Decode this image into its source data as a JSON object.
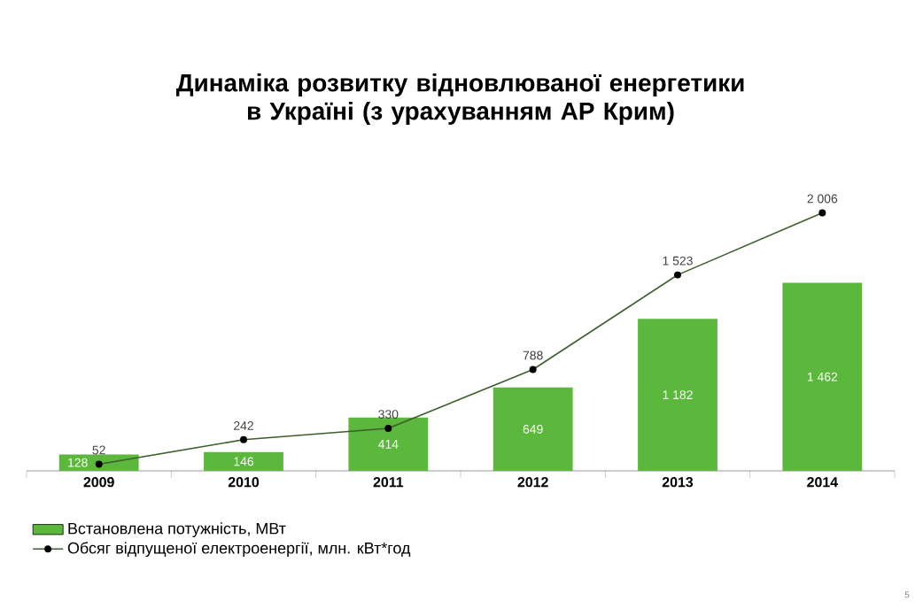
{
  "chart_data": {
    "type": "bar",
    "title": "Динаміка розвитку відновлюваної енергетики в Україні (з урахуванням АР Крим)",
    "categories": [
      "2009",
      "2010",
      "2011",
      "2012",
      "2013",
      "2014"
    ],
    "series": [
      {
        "name": "Встановлена потужність, МВт",
        "color": "#5cb83c",
        "values": [
          128,
          146,
          414,
          649,
          1182,
          1462
        ],
        "value_labels": [
          "128",
          "146",
          "414",
          "649",
          "1 182",
          "1 462"
        ]
      },
      {
        "name": "Обсяг відпущеної електроенергії, млн. кВт*год",
        "type": "line",
        "color": "#3d5f2c",
        "marker": "circle",
        "values": [
          52,
          242,
          330,
          788,
          1523,
          2006
        ],
        "value_labels": [
          "52",
          "242",
          "330",
          "788",
          "1 523",
          "2 006"
        ]
      }
    ],
    "legend": "bottom left",
    "annotations": [
      "5"
    ]
  }
}
